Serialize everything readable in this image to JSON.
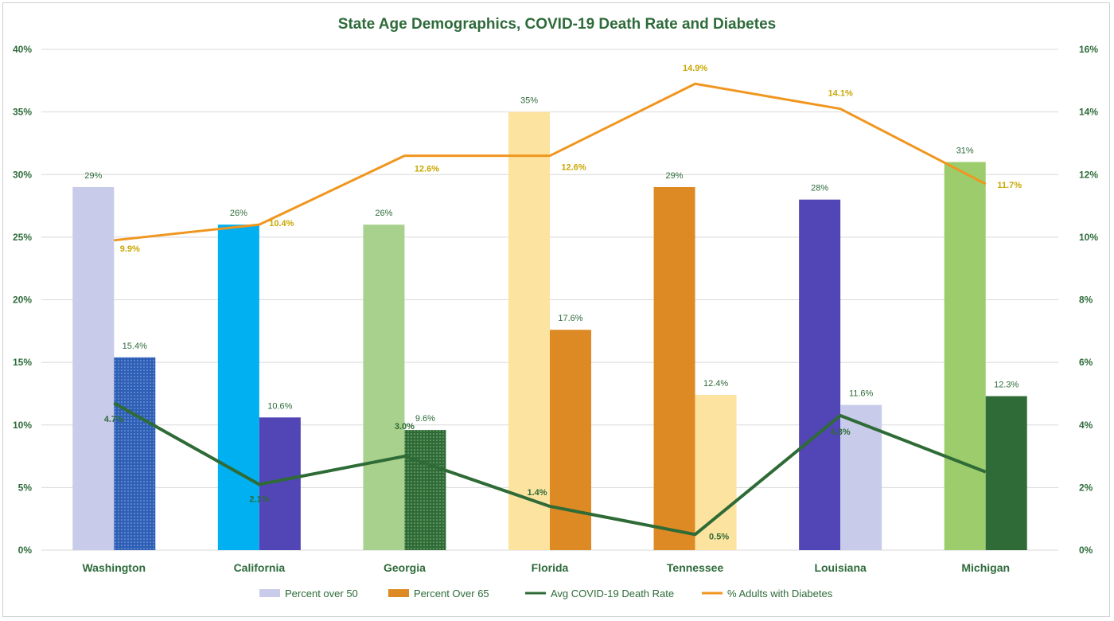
{
  "chart_data": {
    "type": "bar",
    "title": "State Age Demographics, COVID-19 Death Rate and Diabetes",
    "categories": [
      "Washington",
      "California",
      "Georgia",
      "Florida",
      "Tennessee",
      "Louisiana",
      "Michigan"
    ],
    "y_left": {
      "min": 0,
      "max": 40,
      "step": 5,
      "tick_labels": [
        "0%",
        "5%",
        "10%",
        "15%",
        "20%",
        "25%",
        "30%",
        "35%",
        "40%"
      ]
    },
    "y_right": {
      "min": 0,
      "max": 16,
      "step": 2,
      "tick_labels": [
        "0%",
        "2%",
        "4%",
        "6%",
        "8%",
        "10%",
        "12%",
        "14%",
        "16%"
      ]
    },
    "grid": true,
    "legend_position": "bottom",
    "series": [
      {
        "name": "Percent over 50",
        "type": "bar",
        "axis": "left",
        "color": "#c8cbea",
        "values": [
          29,
          26,
          26,
          35,
          29,
          28,
          31
        ],
        "labels": [
          "29%",
          "26%",
          "26%",
          "35%",
          "29%",
          "28%",
          "31%"
        ],
        "point_colors": [
          "#c8cbea",
          "#00b0f0",
          "#a9d18e",
          "#fde3a0",
          "#de8a24",
          "#5245b6",
          "#9ccc6c"
        ]
      },
      {
        "name": "Percent Over 65",
        "type": "bar",
        "axis": "left",
        "color": "#de8a24",
        "values": [
          15.4,
          10.6,
          9.6,
          17.6,
          12.4,
          11.6,
          12.3
        ],
        "labels": [
          "15.4%",
          "10.6%",
          "9.6%",
          "17.6%",
          "12.4%",
          "11.6%",
          "12.3%"
        ],
        "point_colors": [
          "#2e5fb5",
          "#5245b6",
          "#2f6b36",
          "#de8a24",
          "#fde3a0",
          "#c8cbea",
          "#2f6b36"
        ],
        "point_patterns": [
          "dots",
          "none",
          "dots",
          "none",
          "none",
          "none",
          "none"
        ]
      },
      {
        "name": "Avg COVID-19 Death Rate",
        "type": "line",
        "axis": "right",
        "color": "#2f6b36",
        "values": [
          4.7,
          2.1,
          3.0,
          1.4,
          0.5,
          4.3,
          2.5
        ],
        "labels": [
          "4.7%",
          "2.1%",
          "3.0%",
          "1.4%",
          "0.5%",
          "4.3%",
          "2.5%"
        ]
      },
      {
        "name": "% Adults with Diabetes",
        "type": "line",
        "axis": "right",
        "color": "#f0961e",
        "values": [
          9.9,
          10.4,
          12.6,
          12.6,
          14.9,
          14.1,
          11.7
        ],
        "labels": [
          "9.9%",
          "10.4%",
          "12.6%",
          "12.6%",
          "14.9%",
          "14.1%",
          "11.7%"
        ]
      }
    ]
  }
}
